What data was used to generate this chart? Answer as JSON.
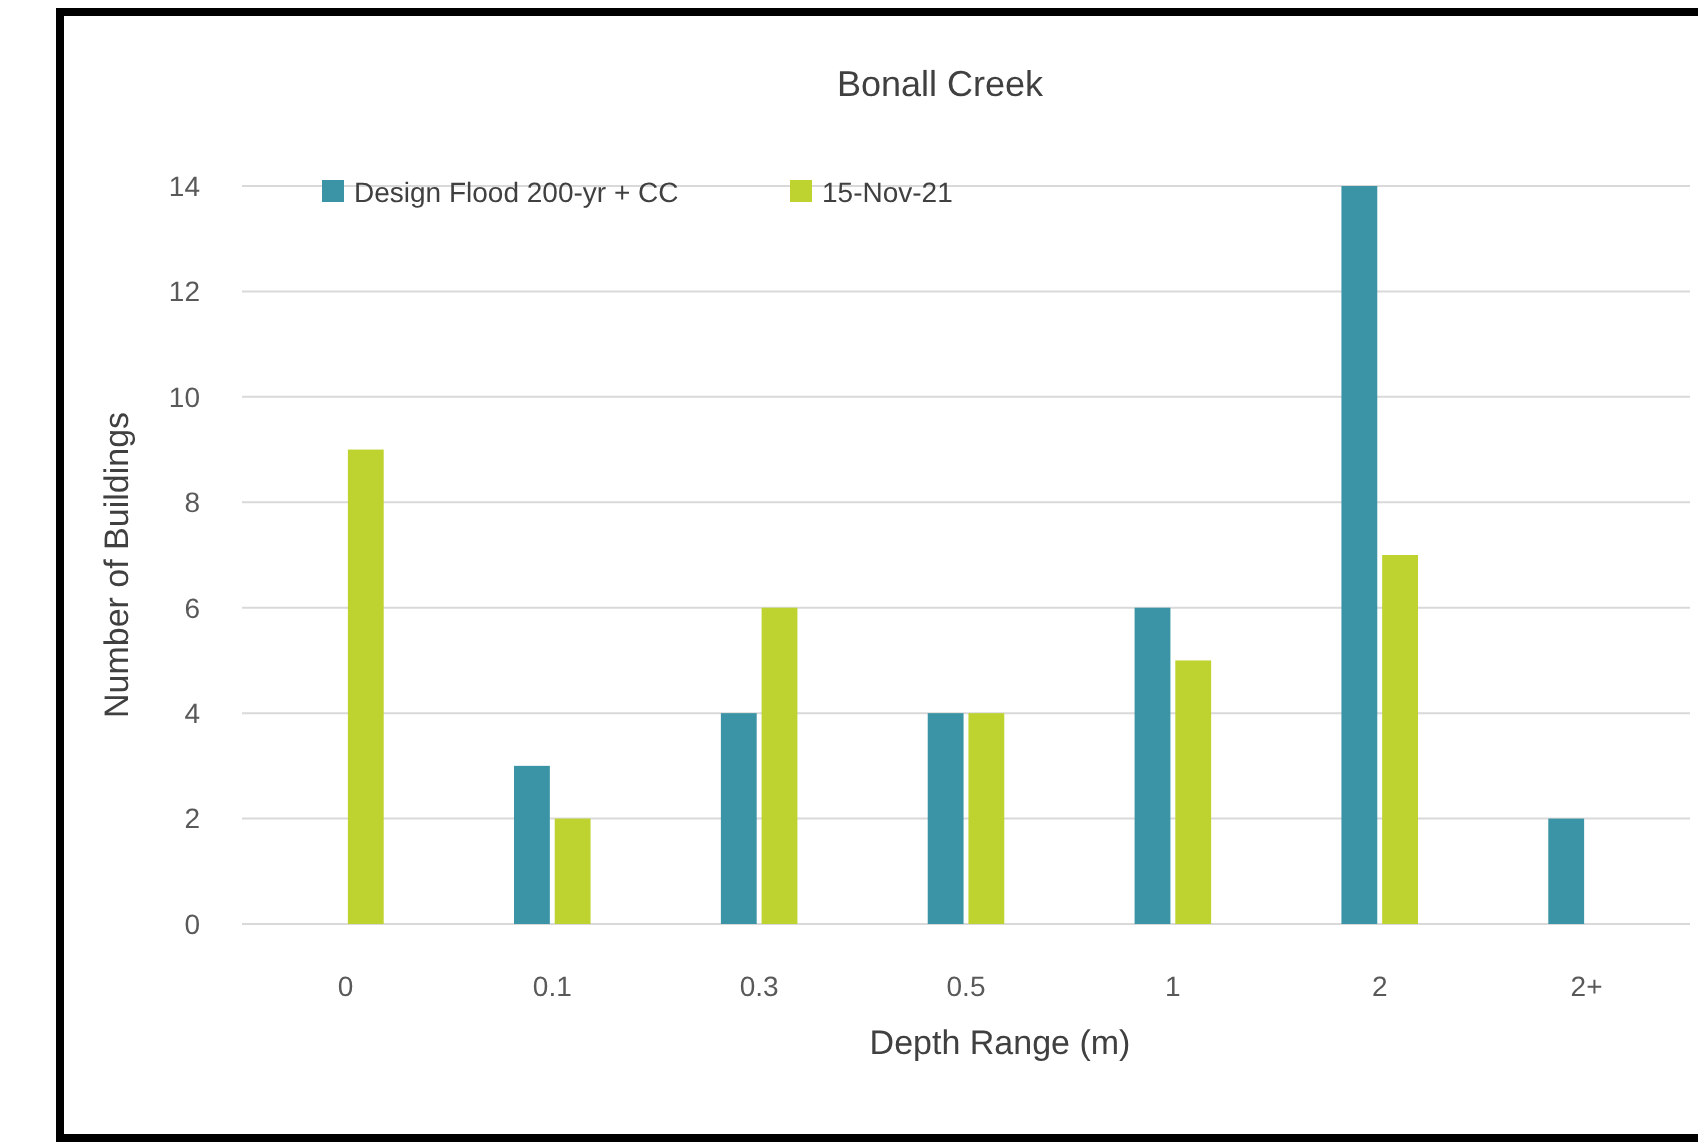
{
  "chart_data": {
    "type": "bar",
    "title": "Bonall Creek",
    "xlabel": "Depth Range (m)",
    "ylabel": "Number of Buildings",
    "categories": [
      "0",
      "0.1",
      "0.3",
      "0.5",
      "1",
      "2",
      "2+"
    ],
    "series": [
      {
        "name": "Design Flood 200-yr + CC",
        "color": "#3b94a6",
        "values": [
          0,
          3,
          4,
          4,
          6,
          14,
          2
        ]
      },
      {
        "name": "15-Nov-21",
        "color": "#bfd330",
        "values": [
          9,
          2,
          6,
          4,
          5,
          7,
          0
        ]
      }
    ],
    "ylim": [
      0,
      14
    ],
    "yticks": [
      0,
      2,
      4,
      6,
      8,
      10,
      12,
      14
    ],
    "grid": "y",
    "legend": "top left"
  }
}
